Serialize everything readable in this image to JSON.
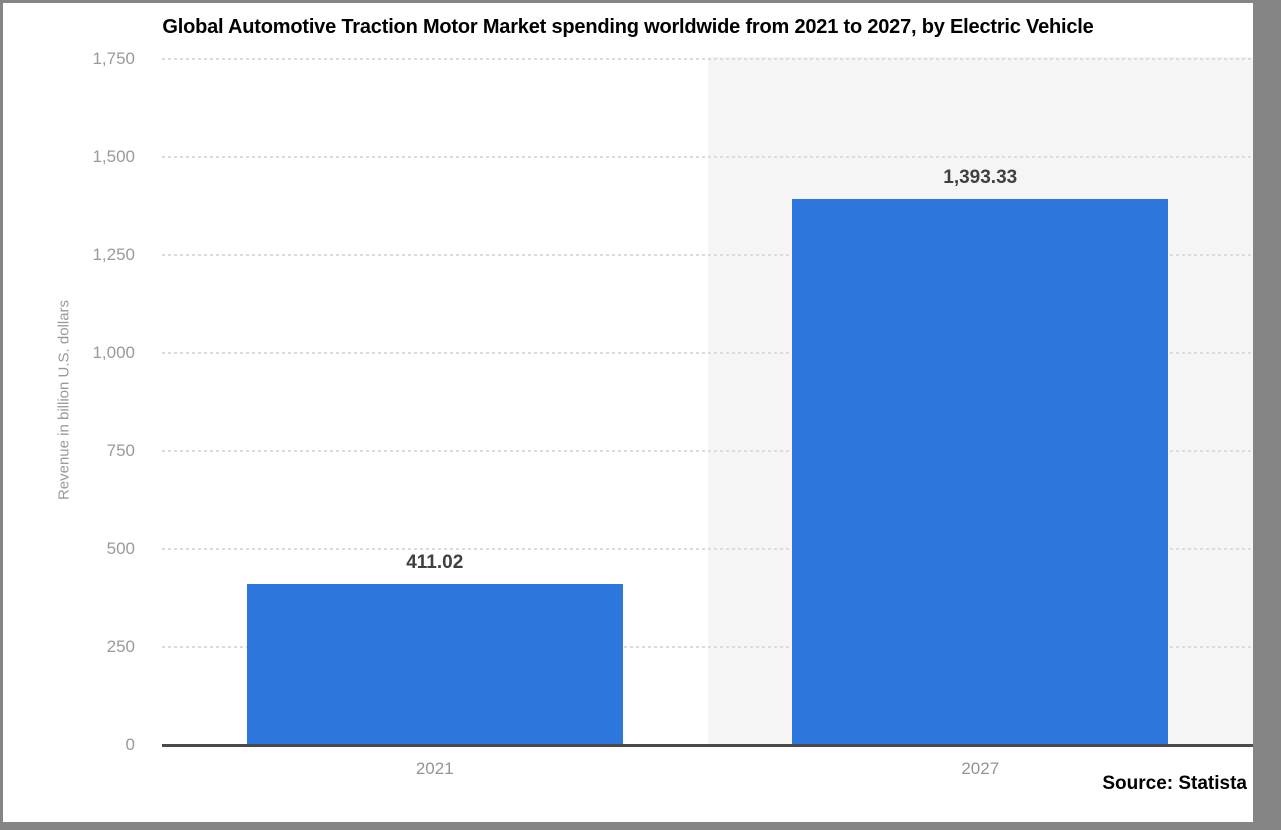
{
  "source": "Source: Statista",
  "chart_data": {
    "type": "bar",
    "title": "Global Automotive Traction Motor Market spending worldwide from 2021 to 2027, by Electric Vehicle",
    "categories": [
      "2021",
      "2027"
    ],
    "values": [
      411.02,
      1393.33
    ],
    "value_labels": [
      "411.02",
      "1,393.33"
    ],
    "xlabel": "",
    "ylabel": "Revenue in billion U.S. dollars",
    "ylim": [
      0,
      1750
    ],
    "ytick_step": 250,
    "ytick_labels": [
      "0",
      "250",
      "500",
      "750",
      "1,000",
      "1,250",
      "1,500",
      "1,750"
    ],
    "grid": "horizontal dotted",
    "legend": "none",
    "highlighted_category": "2027",
    "colors": {
      "bar": "#2d77dc",
      "highlight_band": "#f5f5f5",
      "gridline": "#dcdcdc",
      "axis_line": "#4a4a4a",
      "tick_label": "#9a9a9a",
      "value_label": "#404040",
      "title": "#000000",
      "frame": "#858585"
    }
  }
}
